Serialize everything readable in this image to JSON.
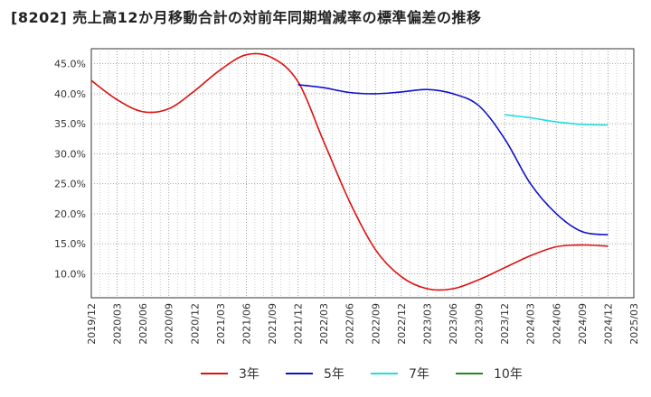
{
  "chart_data": {
    "type": "line",
    "title": "[8202]  売上高12か月移動合計の対前年同期増減率の標準偏差の推移",
    "xlabel": "",
    "ylabel": "",
    "x_ticks": [
      "2019/12",
      "2020/03",
      "2020/06",
      "2020/09",
      "2020/12",
      "2021/03",
      "2021/06",
      "2021/09",
      "2021/12",
      "2022/03",
      "2022/06",
      "2022/09",
      "2022/12",
      "2023/03",
      "2023/06",
      "2023/09",
      "2023/12",
      "2024/03",
      "2024/06",
      "2024/09",
      "2024/12",
      "2025/03"
    ],
    "y_ticks": [
      "10.0%",
      "15.0%",
      "20.0%",
      "25.0%",
      "30.0%",
      "35.0%",
      "40.0%",
      "45.0%"
    ],
    "ylim": [
      6.0,
      47.5
    ],
    "grid": true,
    "legend_position": "bottom",
    "series": [
      {
        "name": "3年",
        "color": "#dd1111",
        "points": [
          [
            "2019/12",
            42.2
          ],
          [
            "2020/03",
            39.0
          ],
          [
            "2020/06",
            37.0
          ],
          [
            "2020/09",
            37.5
          ],
          [
            "2020/12",
            40.5
          ],
          [
            "2021/03",
            44.0
          ],
          [
            "2021/06",
            46.5
          ],
          [
            "2021/09",
            46.0
          ],
          [
            "2021/12",
            42.0
          ],
          [
            "2022/03",
            32.0
          ],
          [
            "2022/06",
            22.0
          ],
          [
            "2022/09",
            14.0
          ],
          [
            "2022/12",
            9.5
          ],
          [
            "2023/03",
            7.5
          ],
          [
            "2023/06",
            7.5
          ],
          [
            "2023/09",
            9.0
          ],
          [
            "2023/12",
            11.0
          ],
          [
            "2024/03",
            13.0
          ],
          [
            "2024/06",
            14.5
          ],
          [
            "2024/09",
            14.8
          ],
          [
            "2024/12",
            14.6
          ]
        ]
      },
      {
        "name": "5年",
        "color": "#1111cc",
        "points": [
          [
            "2021/12",
            41.5
          ],
          [
            "2022/03",
            41.0
          ],
          [
            "2022/06",
            40.2
          ],
          [
            "2022/09",
            40.0
          ],
          [
            "2022/12",
            40.3
          ],
          [
            "2023/03",
            40.7
          ],
          [
            "2023/06",
            40.0
          ],
          [
            "2023/09",
            38.0
          ],
          [
            "2023/12",
            32.5
          ],
          [
            "2024/03",
            25.0
          ],
          [
            "2024/06",
            20.0
          ],
          [
            "2024/09",
            17.0
          ],
          [
            "2024/12",
            16.5
          ]
        ]
      },
      {
        "name": "7年",
        "color": "#22dddd",
        "points": [
          [
            "2023/12",
            36.5
          ],
          [
            "2024/03",
            36.0
          ],
          [
            "2024/06",
            35.3
          ],
          [
            "2024/09",
            34.9
          ],
          [
            "2024/12",
            34.8
          ]
        ]
      },
      {
        "name": "10年",
        "color": "#228822",
        "points": []
      }
    ]
  }
}
